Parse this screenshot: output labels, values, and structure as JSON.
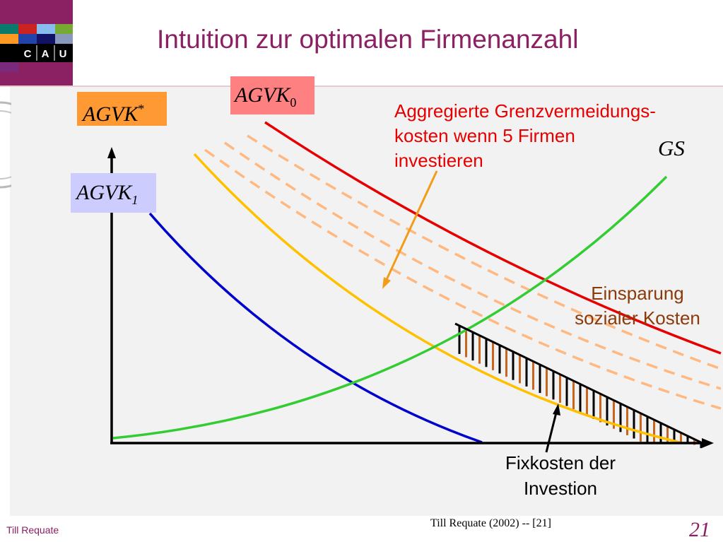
{
  "slide": {
    "title": "Intuition zur optimalen Firmenanzahl",
    "logo_text": [
      "C",
      "A",
      "U"
    ],
    "footer_author": "Till Requate",
    "footer_citation": "Till Requate (2002) -- [21]",
    "page_number": "21"
  },
  "labels": {
    "agvk_star": {
      "base": "AGVK",
      "sup": "*"
    },
    "agvk_0": {
      "base": "AGVK",
      "sub": "0"
    },
    "agvk_1": {
      "base": "AGVK",
      "sub": "1"
    },
    "gs": "GS",
    "aggregated": [
      "Aggregierte Grenzvermeidungs-",
      "kosten wenn 5 Firmen",
      "investieren"
    ],
    "savings": [
      "Einsparung",
      "sozialer Kosten"
    ],
    "fixed_costs": [
      "Fixkosten der",
      "Investion"
    ]
  },
  "colors": {
    "title": "#8b2062",
    "agvk_0": "#e60000",
    "agvk_star": "#ffc000",
    "agvk_1": "#0000cc",
    "gs": "#33cc33",
    "dashed": "#ffb880",
    "hatch_black": "#000000",
    "hatch_brown": "#c8651e"
  }
}
